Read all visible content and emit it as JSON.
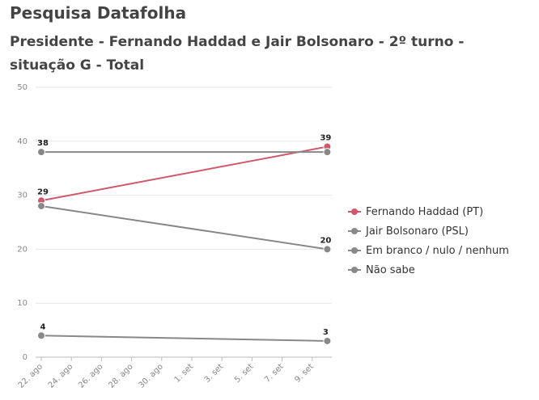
{
  "header": {
    "title": "Pesquisa Datafolha",
    "subtitle": "Presidente - Fernando Haddad e Jair Bolsonaro - 2º turno - situação G - Total"
  },
  "chart_data": {
    "type": "line",
    "title": "Pesquisa Datafolha",
    "subtitle": "Presidente - Fernando Haddad e Jair Bolsonaro - 2º turno - situação G - Total",
    "xlabel": "",
    "ylabel": "",
    "ylim": [
      0,
      50
    ],
    "y_ticks": [
      0,
      10,
      20,
      30,
      40,
      50
    ],
    "x_ticks": [
      "22. ago",
      "24. ago",
      "26. ago",
      "28. ago",
      "30. ago",
      "1. set",
      "3. set",
      "5. set",
      "7. set",
      "9. set"
    ],
    "x_dates": [
      "22. ago",
      "10. set"
    ],
    "grid": true,
    "legend_position": "right",
    "series": [
      {
        "name": "Fernando Haddad (PT)",
        "color": "#d1586b",
        "values": [
          29,
          39
        ],
        "labels": [
          "29",
          "39"
        ]
      },
      {
        "name": "Jair Bolsonaro (PSL)",
        "color": "#888888",
        "values": [
          38,
          38
        ],
        "labels": [
          "38",
          ""
        ]
      },
      {
        "name": "Em branco / nulo / nenhum",
        "color": "#888888",
        "values": [
          28,
          20
        ],
        "labels": [
          "",
          "20"
        ]
      },
      {
        "name": "Não sabe",
        "color": "#888888",
        "values": [
          4,
          3
        ],
        "labels": [
          "4",
          "3"
        ]
      }
    ]
  }
}
